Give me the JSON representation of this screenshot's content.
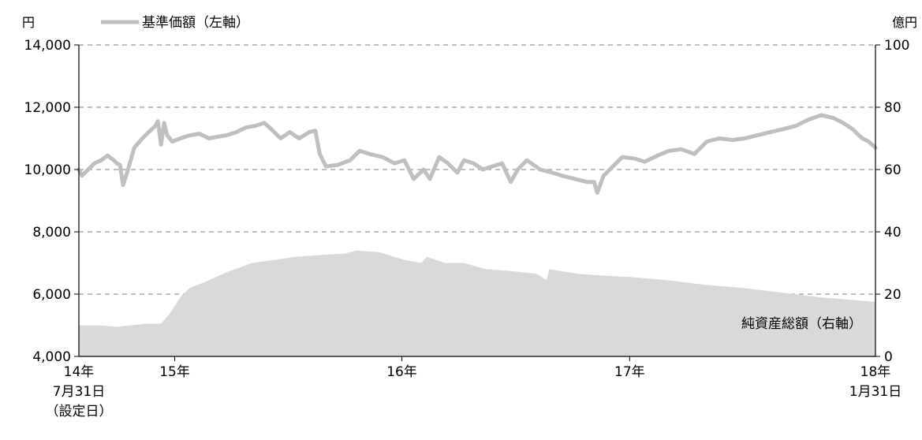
{
  "chart_data": {
    "type": "line",
    "units": {
      "left": "円",
      "right": "億円"
    },
    "legend": {
      "price_label": "基準価額（左軸）",
      "placement": "top-left"
    },
    "area_label": "純資産総額（右軸）",
    "axes": {
      "left": {
        "ylim": [
          4000,
          14000
        ],
        "ticks": [
          "14,000",
          "12,000",
          "10,000",
          "8,000",
          "6,000",
          "4,000"
        ]
      },
      "right": {
        "ylim": [
          0,
          100
        ],
        "ticks": [
          "100",
          "80",
          "60",
          "40",
          "20",
          "0"
        ]
      },
      "x": {
        "range": [
          "2014-07-31",
          "2018-01-31"
        ],
        "year_ticks": [
          "2015-01-01",
          "2016-01-01",
          "2017-01-01"
        ],
        "labels": [
          {
            "date": "2014-07-31",
            "lines": [
              "14年",
              "7月31日",
              "（設定日）"
            ]
          },
          {
            "date": "2015-01-01",
            "lines": [
              "15年"
            ]
          },
          {
            "date": "2016-01-01",
            "lines": [
              "16年"
            ]
          },
          {
            "date": "2017-01-01",
            "lines": [
              "17年"
            ]
          },
          {
            "date": "2018-01-31",
            "lines": [
              "18年",
              "1月31日"
            ]
          }
        ]
      }
    },
    "grid": true,
    "series": [
      {
        "name": "基準価額（左軸）",
        "axis": "left",
        "color": "#bfbfbf",
        "type": "line",
        "points": [
          [
            "2014-07-31",
            10000
          ],
          [
            "2014-08-05",
            9800
          ],
          [
            "2014-08-15",
            10000
          ],
          [
            "2014-08-25",
            10200
          ],
          [
            "2014-09-05",
            10300
          ],
          [
            "2014-09-15",
            10450
          ],
          [
            "2014-09-25",
            10300
          ],
          [
            "2014-09-30",
            10200
          ],
          [
            "2014-10-05",
            10150
          ],
          [
            "2014-10-10",
            9500
          ],
          [
            "2014-10-18",
            10000
          ],
          [
            "2014-10-28",
            10700
          ],
          [
            "2014-11-10",
            11000
          ],
          [
            "2014-11-20",
            11200
          ],
          [
            "2014-12-01",
            11400
          ],
          [
            "2014-12-05",
            11550
          ],
          [
            "2014-12-10",
            10800
          ],
          [
            "2014-12-15",
            11500
          ],
          [
            "2014-12-20",
            11100
          ],
          [
            "2014-12-28",
            10900
          ],
          [
            "2015-01-10",
            11000
          ],
          [
            "2015-01-25",
            11100
          ],
          [
            "2015-02-10",
            11150
          ],
          [
            "2015-02-25",
            11000
          ],
          [
            "2015-03-10",
            11050
          ],
          [
            "2015-03-25",
            11100
          ],
          [
            "2015-04-10",
            11200
          ],
          [
            "2015-04-25",
            11350
          ],
          [
            "2015-05-10",
            11400
          ],
          [
            "2015-05-25",
            11500
          ],
          [
            "2015-06-05",
            11300
          ],
          [
            "2015-06-20",
            11000
          ],
          [
            "2015-07-05",
            11200
          ],
          [
            "2015-07-20",
            11000
          ],
          [
            "2015-08-05",
            11200
          ],
          [
            "2015-08-15",
            11250
          ],
          [
            "2015-08-22",
            10500
          ],
          [
            "2015-09-01",
            10100
          ],
          [
            "2015-09-20",
            10150
          ],
          [
            "2015-10-10",
            10300
          ],
          [
            "2015-10-25",
            10600
          ],
          [
            "2015-11-10",
            10500
          ],
          [
            "2015-12-01",
            10400
          ],
          [
            "2015-12-20",
            10200
          ],
          [
            "2016-01-05",
            10300
          ],
          [
            "2016-01-20",
            9700
          ],
          [
            "2016-02-05",
            10000
          ],
          [
            "2016-02-15",
            9700
          ],
          [
            "2016-03-01",
            10400
          ],
          [
            "2016-03-15",
            10200
          ],
          [
            "2016-03-30",
            9900
          ],
          [
            "2016-04-10",
            10300
          ],
          [
            "2016-04-25",
            10200
          ],
          [
            "2016-05-10",
            10000
          ],
          [
            "2016-05-25",
            10100
          ],
          [
            "2016-06-10",
            10200
          ],
          [
            "2016-06-24",
            9600
          ],
          [
            "2016-07-05",
            10000
          ],
          [
            "2016-07-20",
            10300
          ],
          [
            "2016-08-10",
            10000
          ],
          [
            "2016-08-30",
            9900
          ],
          [
            "2016-09-15",
            9800
          ],
          [
            "2016-10-05",
            9700
          ],
          [
            "2016-10-25",
            9600
          ],
          [
            "2016-11-05",
            9600
          ],
          [
            "2016-11-10",
            9250
          ],
          [
            "2016-11-20",
            9800
          ],
          [
            "2016-12-05",
            10100
          ],
          [
            "2016-12-20",
            10400
          ],
          [
            "2017-01-10",
            10350
          ],
          [
            "2017-01-25",
            10250
          ],
          [
            "2017-02-15",
            10450
          ],
          [
            "2017-03-05",
            10600
          ],
          [
            "2017-03-25",
            10650
          ],
          [
            "2017-04-15",
            10500
          ],
          [
            "2017-05-05",
            10900
          ],
          [
            "2017-05-25",
            11000
          ],
          [
            "2017-06-15",
            10950
          ],
          [
            "2017-07-05",
            11000
          ],
          [
            "2017-07-25",
            11100
          ],
          [
            "2017-08-15",
            11200
          ],
          [
            "2017-09-05",
            11300
          ],
          [
            "2017-09-25",
            11400
          ],
          [
            "2017-10-15",
            11600
          ],
          [
            "2017-11-05",
            11750
          ],
          [
            "2017-11-25",
            11650
          ],
          [
            "2017-12-10",
            11500
          ],
          [
            "2017-12-25",
            11300
          ],
          [
            "2018-01-10",
            11000
          ],
          [
            "2018-01-20",
            10900
          ],
          [
            "2018-01-31",
            10700
          ]
        ]
      },
      {
        "name": "純資産総額（右軸）",
        "axis": "right",
        "color": "#d9d9d9",
        "type": "area",
        "points": [
          [
            "2014-07-31",
            10
          ],
          [
            "2014-09-01",
            10
          ],
          [
            "2014-10-01",
            9.5
          ],
          [
            "2014-11-15",
            10.5
          ],
          [
            "2014-12-10",
            10.5
          ],
          [
            "2014-12-25",
            14
          ],
          [
            "2015-01-10",
            19
          ],
          [
            "2015-01-25",
            22
          ],
          [
            "2015-02-20",
            24
          ],
          [
            "2015-03-25",
            27
          ],
          [
            "2015-05-05",
            30
          ],
          [
            "2015-06-10",
            31
          ],
          [
            "2015-07-15",
            32
          ],
          [
            "2015-08-20",
            32.5
          ],
          [
            "2015-10-01",
            33
          ],
          [
            "2015-10-20",
            34
          ],
          [
            "2015-11-25",
            33.5
          ],
          [
            "2016-01-05",
            31
          ],
          [
            "2016-02-01",
            30
          ],
          [
            "2016-02-10",
            32
          ],
          [
            "2016-03-10",
            30
          ],
          [
            "2016-04-10",
            30
          ],
          [
            "2016-05-15",
            28
          ],
          [
            "2016-06-20",
            27.5
          ],
          [
            "2016-08-05",
            26.5
          ],
          [
            "2016-08-20",
            24.5
          ],
          [
            "2016-08-25",
            28
          ],
          [
            "2016-10-10",
            26.5
          ],
          [
            "2016-11-15",
            26
          ],
          [
            "2017-01-01",
            25.5
          ],
          [
            "2017-03-01",
            24.5
          ],
          [
            "2017-05-01",
            23
          ],
          [
            "2017-07-01",
            22
          ],
          [
            "2017-09-01",
            20.5
          ],
          [
            "2017-11-01",
            19
          ],
          [
            "2018-01-01",
            18
          ],
          [
            "2018-01-31",
            17.5
          ]
        ]
      }
    ]
  }
}
